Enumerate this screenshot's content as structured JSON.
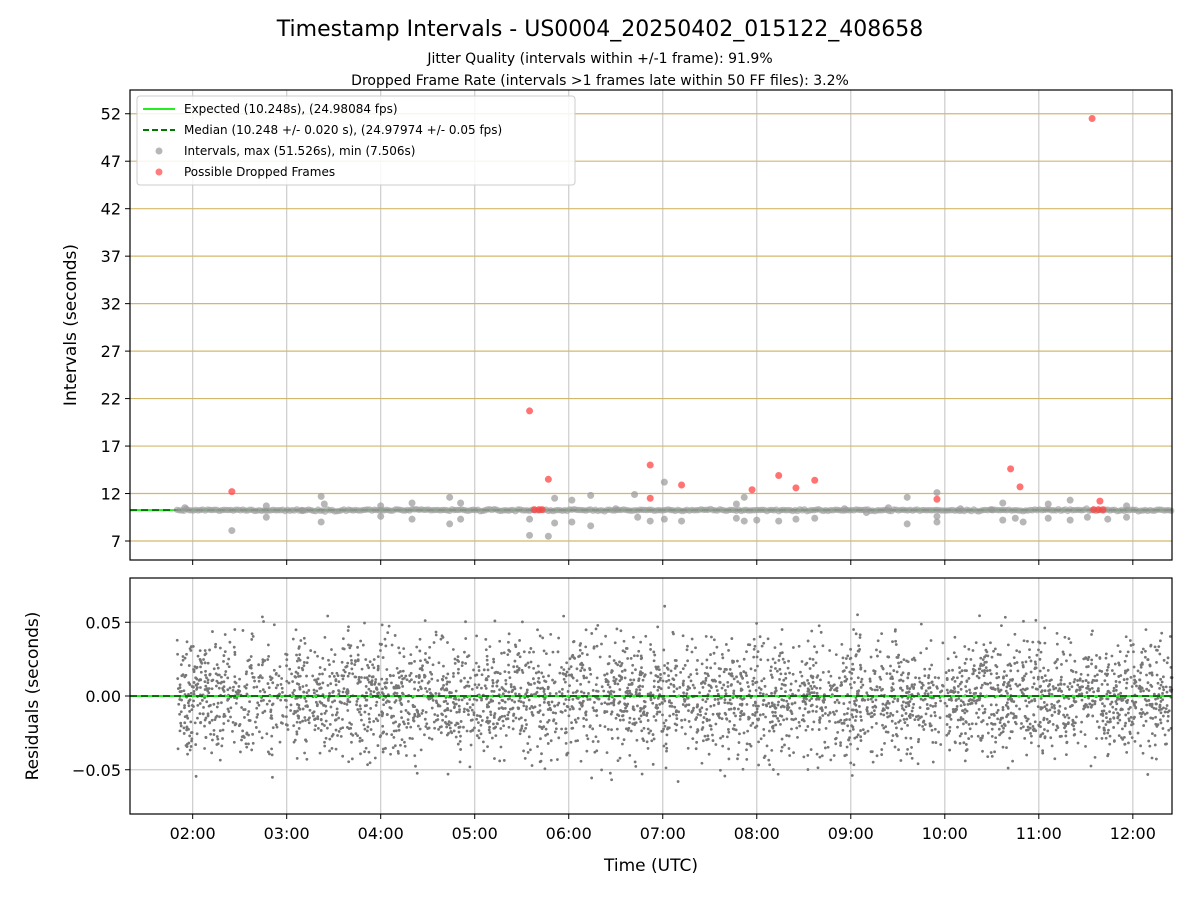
{
  "chart_data": {
    "type": "scatter",
    "title": "Timestamp Intervals - US0004_20250402_015122_408658",
    "subtitle_lines": [
      "Jitter Quality (intervals within +/-1 frame): 91.9%",
      "Dropped Frame Rate (intervals >1 frames late within 50 FF files): 3.2%"
    ],
    "xlabel": "Time (UTC)",
    "x_ticks": [
      "02:00",
      "03:00",
      "04:00",
      "05:00",
      "06:00",
      "07:00",
      "08:00",
      "09:00",
      "10:00",
      "11:00",
      "12:00"
    ],
    "x_range": [
      "01:20",
      "12:25"
    ],
    "grid": true,
    "colors": {
      "expected": "#22ee22",
      "median": "#007700",
      "intervals": "#999999",
      "dropped": "#ff4444",
      "residuals": "#777777",
      "hgrid_top": "#d4b86a"
    },
    "top_panel": {
      "ylabel": "Intervals (seconds)",
      "ylim": [
        5,
        54.5
      ],
      "y_ticks": [
        "7",
        "12",
        "17",
        "22",
        "27",
        "32",
        "37",
        "42",
        "47",
        "52"
      ],
      "expected_value": 10.248,
      "median_value": 10.248,
      "legend": {
        "placement": "top-left",
        "entries": [
          "Expected (10.248s), (24.98084 fps)",
          "Median (10.248 +/- 0.020 s), (24.97974 +/- 0.05 fps)",
          "Intervals, max (51.526s), min (7.506s)",
          "Possible Dropped Frames"
        ]
      },
      "intervals_max": 51.526,
      "intervals_min": 7.506,
      "dropped_frames": [
        {
          "x": "02:25",
          "y": 12.2
        },
        {
          "x": "05:35",
          "y": 20.7
        },
        {
          "x": "05:47",
          "y": 13.5
        },
        {
          "x": "06:52",
          "y": 15.0
        },
        {
          "x": "06:52",
          "y": 11.5
        },
        {
          "x": "07:12",
          "y": 12.9
        },
        {
          "x": "07:57",
          "y": 12.4
        },
        {
          "x": "08:14",
          "y": 13.9
        },
        {
          "x": "08:25",
          "y": 12.6
        },
        {
          "x": "08:37",
          "y": 13.4
        },
        {
          "x": "09:55",
          "y": 11.4
        },
        {
          "x": "10:42",
          "y": 14.6
        },
        {
          "x": "10:48",
          "y": 12.7
        },
        {
          "x": "11:34",
          "y": 51.5
        },
        {
          "x": "11:39",
          "y": 11.2
        },
        {
          "x": "05:38",
          "y": 10.3
        },
        {
          "x": "05:41",
          "y": 10.3
        },
        {
          "x": "05:43",
          "y": 10.3
        },
        {
          "x": "11:35",
          "y": 10.3
        },
        {
          "x": "11:38",
          "y": 10.3
        },
        {
          "x": "11:41",
          "y": 10.3
        }
      ],
      "gray_outliers": [
        {
          "x": "01:55",
          "y": 10.5
        },
        {
          "x": "02:25",
          "y": 8.1
        },
        {
          "x": "02:47",
          "y": 10.7
        },
        {
          "x": "02:47",
          "y": 9.5
        },
        {
          "x": "03:10",
          "y": 10.2
        },
        {
          "x": "03:22",
          "y": 11.7
        },
        {
          "x": "03:22",
          "y": 9.0
        },
        {
          "x": "03:24",
          "y": 10.9
        },
        {
          "x": "04:00",
          "y": 10.7
        },
        {
          "x": "04:00",
          "y": 9.6
        },
        {
          "x": "04:20",
          "y": 11.0
        },
        {
          "x": "04:20",
          "y": 9.3
        },
        {
          "x": "04:44",
          "y": 11.6
        },
        {
          "x": "04:44",
          "y": 8.8
        },
        {
          "x": "04:51",
          "y": 11.0
        },
        {
          "x": "04:51",
          "y": 9.3
        },
        {
          "x": "05:35",
          "y": 9.3
        },
        {
          "x": "05:35",
          "y": 7.6
        },
        {
          "x": "05:47",
          "y": 7.5
        },
        {
          "x": "05:51",
          "y": 11.5
        },
        {
          "x": "05:51",
          "y": 8.9
        },
        {
          "x": "06:02",
          "y": 11.3
        },
        {
          "x": "06:02",
          "y": 9.0
        },
        {
          "x": "06:14",
          "y": 11.8
        },
        {
          "x": "06:14",
          "y": 8.6
        },
        {
          "x": "06:30",
          "y": 10.4
        },
        {
          "x": "06:42",
          "y": 11.9
        },
        {
          "x": "06:44",
          "y": 9.5
        },
        {
          "x": "06:52",
          "y": 9.1
        },
        {
          "x": "07:01",
          "y": 13.2
        },
        {
          "x": "07:01",
          "y": 9.3
        },
        {
          "x": "07:12",
          "y": 9.1
        },
        {
          "x": "07:47",
          "y": 10.9
        },
        {
          "x": "07:47",
          "y": 9.4
        },
        {
          "x": "07:52",
          "y": 11.6
        },
        {
          "x": "07:52",
          "y": 9.1
        },
        {
          "x": "08:00",
          "y": 9.2
        },
        {
          "x": "08:14",
          "y": 9.1
        },
        {
          "x": "08:25",
          "y": 9.3
        },
        {
          "x": "08:37",
          "y": 9.4
        },
        {
          "x": "08:56",
          "y": 10.4
        },
        {
          "x": "09:10",
          "y": 10.0
        },
        {
          "x": "09:24",
          "y": 10.5
        },
        {
          "x": "09:36",
          "y": 11.6
        },
        {
          "x": "09:36",
          "y": 8.8
        },
        {
          "x": "09:55",
          "y": 12.1
        },
        {
          "x": "09:55",
          "y": 9.0
        },
        {
          "x": "09:55",
          "y": 9.6
        },
        {
          "x": "10:10",
          "y": 10.4
        },
        {
          "x": "10:30",
          "y": 10.3
        },
        {
          "x": "10:37",
          "y": 11.0
        },
        {
          "x": "10:37",
          "y": 9.2
        },
        {
          "x": "10:45",
          "y": 9.4
        },
        {
          "x": "10:50",
          "y": 9.0
        },
        {
          "x": "11:06",
          "y": 10.9
        },
        {
          "x": "11:06",
          "y": 9.4
        },
        {
          "x": "11:20",
          "y": 11.3
        },
        {
          "x": "11:20",
          "y": 9.2
        },
        {
          "x": "11:31",
          "y": 9.5
        },
        {
          "x": "11:44",
          "y": 9.3
        },
        {
          "x": "11:56",
          "y": 10.7
        },
        {
          "x": "11:56",
          "y": 9.5
        }
      ]
    },
    "bottom_panel": {
      "ylabel": "Residuals (seconds)",
      "ylim": [
        -0.08,
        0.08
      ],
      "y_ticks": [
        "−0.05",
        "0.00",
        "0.05"
      ],
      "y_tick_values": [
        -0.05,
        0.0,
        0.05
      ],
      "residual_count": 3900,
      "residual_spread_sd": 0.02,
      "residual_x_range": [
        "01:50",
        "12:25"
      ]
    }
  }
}
